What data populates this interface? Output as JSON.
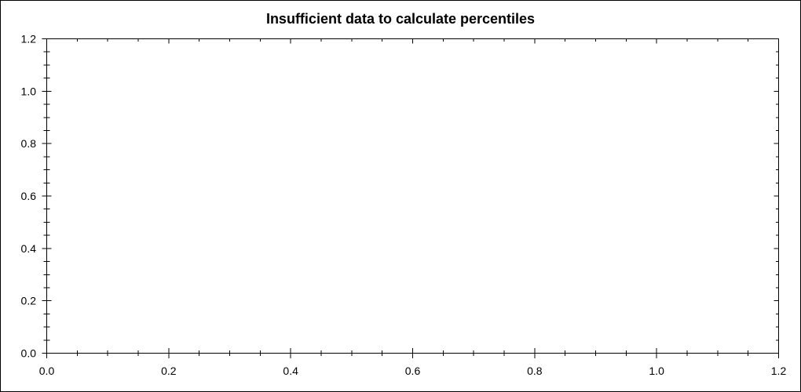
{
  "chart_data": {
    "type": "scatter",
    "title": "Insufficient data to calculate percentiles",
    "series": [],
    "xlabel": "",
    "ylabel": "",
    "xlim": [
      0.0,
      1.2
    ],
    "ylim": [
      0.0,
      1.2
    ],
    "x_ticks": [
      "0.0",
      "0.2",
      "0.4",
      "0.6",
      "0.8",
      "1.0",
      "1.2"
    ],
    "y_ticks": [
      "0.0",
      "0.2",
      "0.4",
      "0.6",
      "0.8",
      "1.0",
      "1.2"
    ],
    "minor_ticks_between_major": 3,
    "grid": false,
    "legend": "none",
    "colors": {
      "axis": "#000000",
      "text": "#000000",
      "background": "#ffffff",
      "frame": "#000000"
    }
  }
}
